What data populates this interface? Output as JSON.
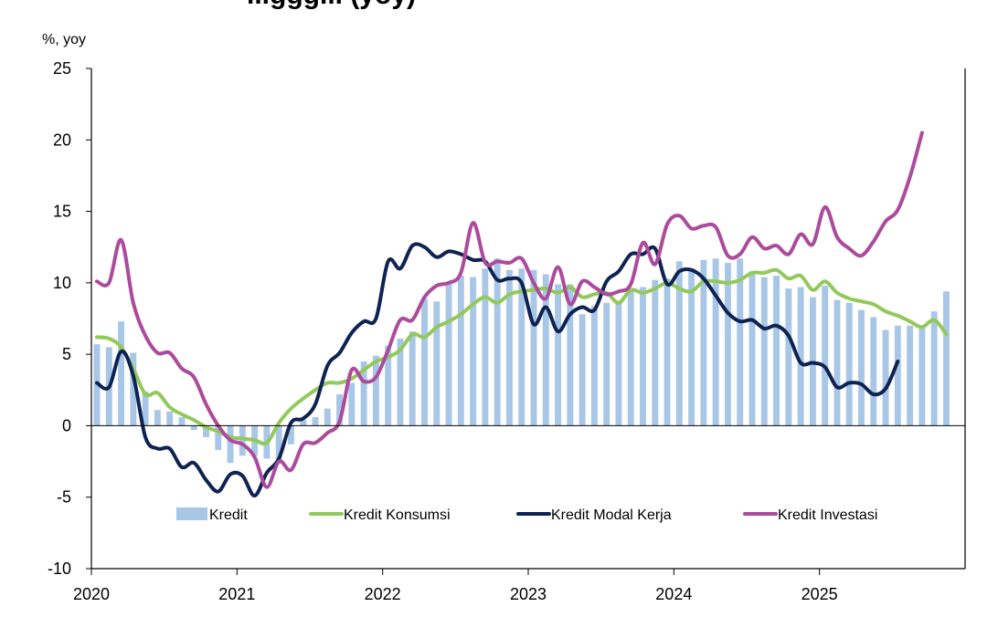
{
  "chart_data": {
    "type": "bar+line",
    "title_fragment": "...ggg... (yoy)",
    "ylabel": "%, yoy",
    "ylim": [
      -10,
      25
    ],
    "yticks": [
      "25",
      "20",
      "15",
      "10",
      "5",
      "0",
      "-5",
      "-10"
    ],
    "ytick_values": [
      25,
      20,
      15,
      10,
      5,
      0,
      -5,
      -10
    ],
    "xticks": [
      "2020",
      "2021",
      "2022",
      "2023",
      "2024",
      "2025"
    ],
    "xtick_values": [
      0,
      12,
      24,
      36,
      48,
      60
    ],
    "xlim": [
      0,
      72
    ],
    "legend": {
      "kredit": "Kredit",
      "konsumsi": "Kredit Konsumsi",
      "modal_kerja": "Kredit Modal Kerja",
      "investasi": "Kredit Investasi"
    },
    "colors": {
      "kredit": "#a8c6e6",
      "konsumsi": "#92c95a",
      "modal_kerja": "#0f2353",
      "investasi": "#ac4a9c",
      "axis": "#000000"
    },
    "series": [
      {
        "name": "Kredit",
        "kind": "bar",
        "x": [
          0,
          1,
          2,
          3,
          4,
          5,
          6,
          7,
          8,
          9,
          10,
          11,
          12,
          13,
          14,
          15,
          16,
          17,
          18,
          19,
          20,
          21,
          22,
          23,
          24,
          25,
          26,
          27,
          28,
          29,
          30,
          31,
          32,
          33,
          34,
          35,
          36,
          37,
          38,
          39,
          40,
          41,
          42,
          43,
          44,
          45,
          46,
          47,
          48,
          49,
          50,
          51,
          52,
          53,
          54,
          55,
          56,
          57,
          58,
          59,
          60,
          61,
          62,
          63,
          64,
          65,
          66,
          67,
          68,
          69,
          70,
          71
        ],
        "values": [
          5.7,
          5.5,
          7.3,
          5.1,
          2.4,
          1.1,
          1.0,
          0.6,
          -0.3,
          -0.8,
          -1.7,
          -2.6,
          -2.1,
          -2.1,
          -2.3,
          -2.4,
          -1.3,
          0.4,
          0.6,
          1.2,
          2.2,
          3.0,
          4.5,
          4.9,
          5.6,
          6.1,
          6.6,
          8.9,
          8.7,
          10.1,
          10.5,
          10.4,
          11.0,
          11.7,
          10.9,
          11.0,
          10.9,
          10.6,
          9.9,
          9.9,
          7.8,
          8.4,
          8.6,
          8.7,
          9.4,
          9.7,
          10.2,
          10.3,
          11.5,
          11.0,
          11.6,
          11.7,
          11.4,
          11.7,
          10.8,
          10.4,
          10.5,
          9.6,
          9.7,
          9.0,
          9.8,
          8.8,
          8.6,
          8.1,
          7.6,
          6.7,
          7.0,
          7.0,
          7.0,
          8.0,
          9.4,
          null
        ]
      },
      {
        "name": "Kredit Konsumsi",
        "kind": "line",
        "x": [
          0,
          1,
          2,
          3,
          4,
          5,
          6,
          7,
          8,
          9,
          10,
          11,
          12,
          13,
          14,
          15,
          16,
          17,
          18,
          19,
          20,
          21,
          22,
          23,
          24,
          25,
          26,
          27,
          28,
          29,
          30,
          31,
          32,
          33,
          34,
          35,
          36,
          37,
          38,
          39,
          40,
          41,
          42,
          43,
          44,
          45,
          46,
          47,
          48,
          49,
          50,
          51,
          52,
          53,
          54,
          55,
          56,
          57,
          58,
          59,
          60,
          61,
          62,
          63,
          64,
          65,
          66,
          67,
          68,
          69,
          70,
          71
        ],
        "values": [
          6.2,
          6.1,
          5.5,
          4.0,
          2.2,
          2.3,
          1.3,
          0.8,
          0.4,
          -0.1,
          -0.4,
          -0.8,
          -0.9,
          -1.0,
          -1.2,
          0.2,
          1.2,
          1.9,
          2.5,
          3.0,
          3.0,
          3.3,
          3.9,
          4.5,
          4.8,
          5.3,
          6.4,
          6.2,
          6.9,
          7.3,
          7.8,
          8.5,
          9.0,
          8.6,
          9.2,
          9.4,
          9.5,
          9.6,
          9.3,
          9.7,
          9.0,
          9.2,
          9.3,
          8.6,
          9.5,
          9.3,
          9.6,
          10.0,
          9.6,
          9.4,
          10.1,
          10.1,
          10.0,
          10.2,
          10.7,
          10.7,
          10.9,
          10.3,
          10.5,
          9.5,
          10.1,
          9.3,
          8.9,
          8.7,
          8.5,
          8.0,
          7.7,
          7.3,
          6.9,
          7.4,
          6.4,
          null
        ]
      },
      {
        "name": "Kredit Modal Kerja",
        "kind": "line",
        "x": [
          0,
          1,
          2,
          3,
          4,
          5,
          6,
          7,
          8,
          9,
          10,
          11,
          12,
          13,
          14,
          15,
          16,
          17,
          18,
          19,
          20,
          21,
          22,
          23,
          24,
          25,
          26,
          27,
          28,
          29,
          30,
          31,
          32,
          33,
          34,
          35,
          36,
          37,
          38,
          39,
          40,
          41,
          42,
          43,
          44,
          45,
          46,
          47,
          48,
          49,
          50,
          51,
          52,
          53,
          54,
          55,
          56,
          57,
          58,
          59,
          60,
          61,
          62,
          63,
          64,
          65,
          66,
          67,
          68,
          69,
          70,
          71
        ],
        "values": [
          3.0,
          2.7,
          5.2,
          3.5,
          -0.8,
          -1.6,
          -1.6,
          -2.9,
          -2.6,
          -3.8,
          -4.6,
          -3.4,
          -3.5,
          -4.9,
          -3.3,
          -2.3,
          0.2,
          0.5,
          1.5,
          4.2,
          5.1,
          6.5,
          7.3,
          7.5,
          11.5,
          11.0,
          12.6,
          12.5,
          11.8,
          12.2,
          12.0,
          11.6,
          11.5,
          10.2,
          10.3,
          10.0,
          7.1,
          8.3,
          6.6,
          7.8,
          8.3,
          8.1,
          10.1,
          10.8,
          12.0,
          12.0,
          12.4,
          9.9,
          10.8,
          10.9,
          10.3,
          9.1,
          7.9,
          7.3,
          7.4,
          6.8,
          7.0,
          6.3,
          4.4,
          4.4,
          4.1,
          2.7,
          3.0,
          2.9,
          2.2,
          2.6,
          4.5,
          null,
          null,
          null,
          null,
          null
        ]
      },
      {
        "name": "Kredit Investasi",
        "kind": "line",
        "x": [
          0,
          1,
          2,
          3,
          4,
          5,
          6,
          7,
          8,
          9,
          10,
          11,
          12,
          13,
          14,
          15,
          16,
          17,
          18,
          19,
          20,
          21,
          22,
          23,
          24,
          25,
          26,
          27,
          28,
          29,
          30,
          31,
          32,
          33,
          34,
          35,
          36,
          37,
          38,
          39,
          40,
          41,
          42,
          43,
          44,
          45,
          46,
          47,
          48,
          49,
          50,
          51,
          52,
          53,
          54,
          55,
          56,
          57,
          58,
          59,
          60,
          61,
          62,
          63,
          64,
          65,
          66,
          67,
          68,
          69,
          70,
          71
        ],
        "values": [
          10.1,
          10.0,
          13.0,
          8.6,
          6.3,
          5.1,
          5.1,
          4.0,
          3.4,
          1.5,
          0.0,
          -1.0,
          -1.3,
          -2.2,
          -4.3,
          -2.5,
          -3.1,
          -1.3,
          -1.2,
          -0.5,
          0.3,
          3.9,
          3.1,
          3.4,
          5.3,
          7.4,
          7.4,
          9.0,
          9.8,
          10.0,
          10.7,
          14.2,
          11.4,
          11.5,
          11.4,
          11.7,
          10.0,
          8.9,
          11.1,
          8.5,
          10.1,
          9.7,
          9.2,
          9.4,
          9.9,
          12.8,
          11.3,
          14.1,
          14.7,
          13.8,
          14.0,
          13.9,
          11.9,
          12.0,
          13.2,
          12.4,
          12.6,
          12.0,
          13.4,
          12.7,
          15.3,
          13.2,
          12.4,
          11.9,
          12.9,
          14.3,
          15.1,
          17.4,
          20.5,
          null,
          null,
          null
        ]
      }
    ]
  }
}
